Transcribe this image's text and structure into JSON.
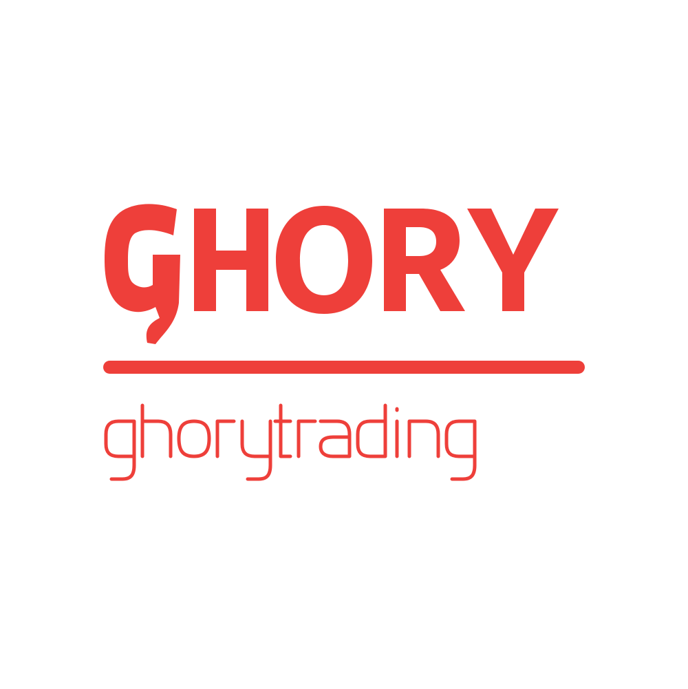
{
  "logo": {
    "wordmark": "GHORY",
    "tagline": "ghorytrading",
    "brand_color": "#ee3f3a",
    "background_color": "#ffffff"
  }
}
